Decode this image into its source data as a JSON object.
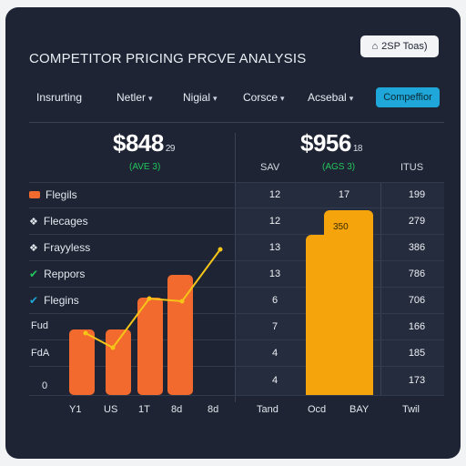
{
  "header": {
    "title": "COMPETITOR PRICING PRCVE ANALYSIS",
    "top_button_label": "2SP Toas)",
    "top_button_icon": "home-icon"
  },
  "nav": {
    "items": [
      "Insrurting",
      "Netler",
      "Nigial",
      "Corsce",
      "Acsebal"
    ],
    "active_label": "Compeffior",
    "accent": "#1ea7d8"
  },
  "summary": {
    "left_value": "$848",
    "left_suffix": "29",
    "left_sub": "(AVE 3)",
    "right_value": "$956",
    "right_suffix": "18",
    "right_sub": "(AGS 3)",
    "positive_color": "#23c55e"
  },
  "columns": [
    "SAV",
    "ITUS"
  ],
  "legend": [
    {
      "label": "Flegils",
      "icon": "orange-swatch"
    },
    {
      "label": "Flecages",
      "icon": "diamond-icon"
    },
    {
      "label": "Frayyless",
      "icon": "diamond-icon"
    },
    {
      "label": "Reppors",
      "icon": "check-icon"
    },
    {
      "label": "Flegins",
      "icon": "check-icon"
    }
  ],
  "y_labels": [
    "Fud",
    "FdA",
    "0"
  ],
  "table": {
    "col1": [
      "12",
      "12",
      "13",
      "13",
      "6",
      "7",
      "4",
      "4"
    ],
    "col2": [
      "17"
    ],
    "col3": [
      "199",
      "279",
      "386",
      "786",
      "706",
      "166",
      "185",
      "173"
    ]
  },
  "bar_tag": "350",
  "x_labels": [
    "Y1",
    "US",
    "1T",
    "8d",
    "8d",
    "Tand",
    "Ocd",
    "BAY",
    "Twil"
  ],
  "chart_data": {
    "type": "bar",
    "categories": [
      "Y1",
      "US",
      "1T",
      "8d"
    ],
    "values": [
      72,
      72,
      107,
      132
    ],
    "line_values": [
      68,
      52,
      106,
      103,
      160
    ],
    "big_bar_value": 350,
    "colors": {
      "bars": "#f26a2e",
      "line": "#f5c518",
      "big_bar": "#f5a40c"
    }
  }
}
